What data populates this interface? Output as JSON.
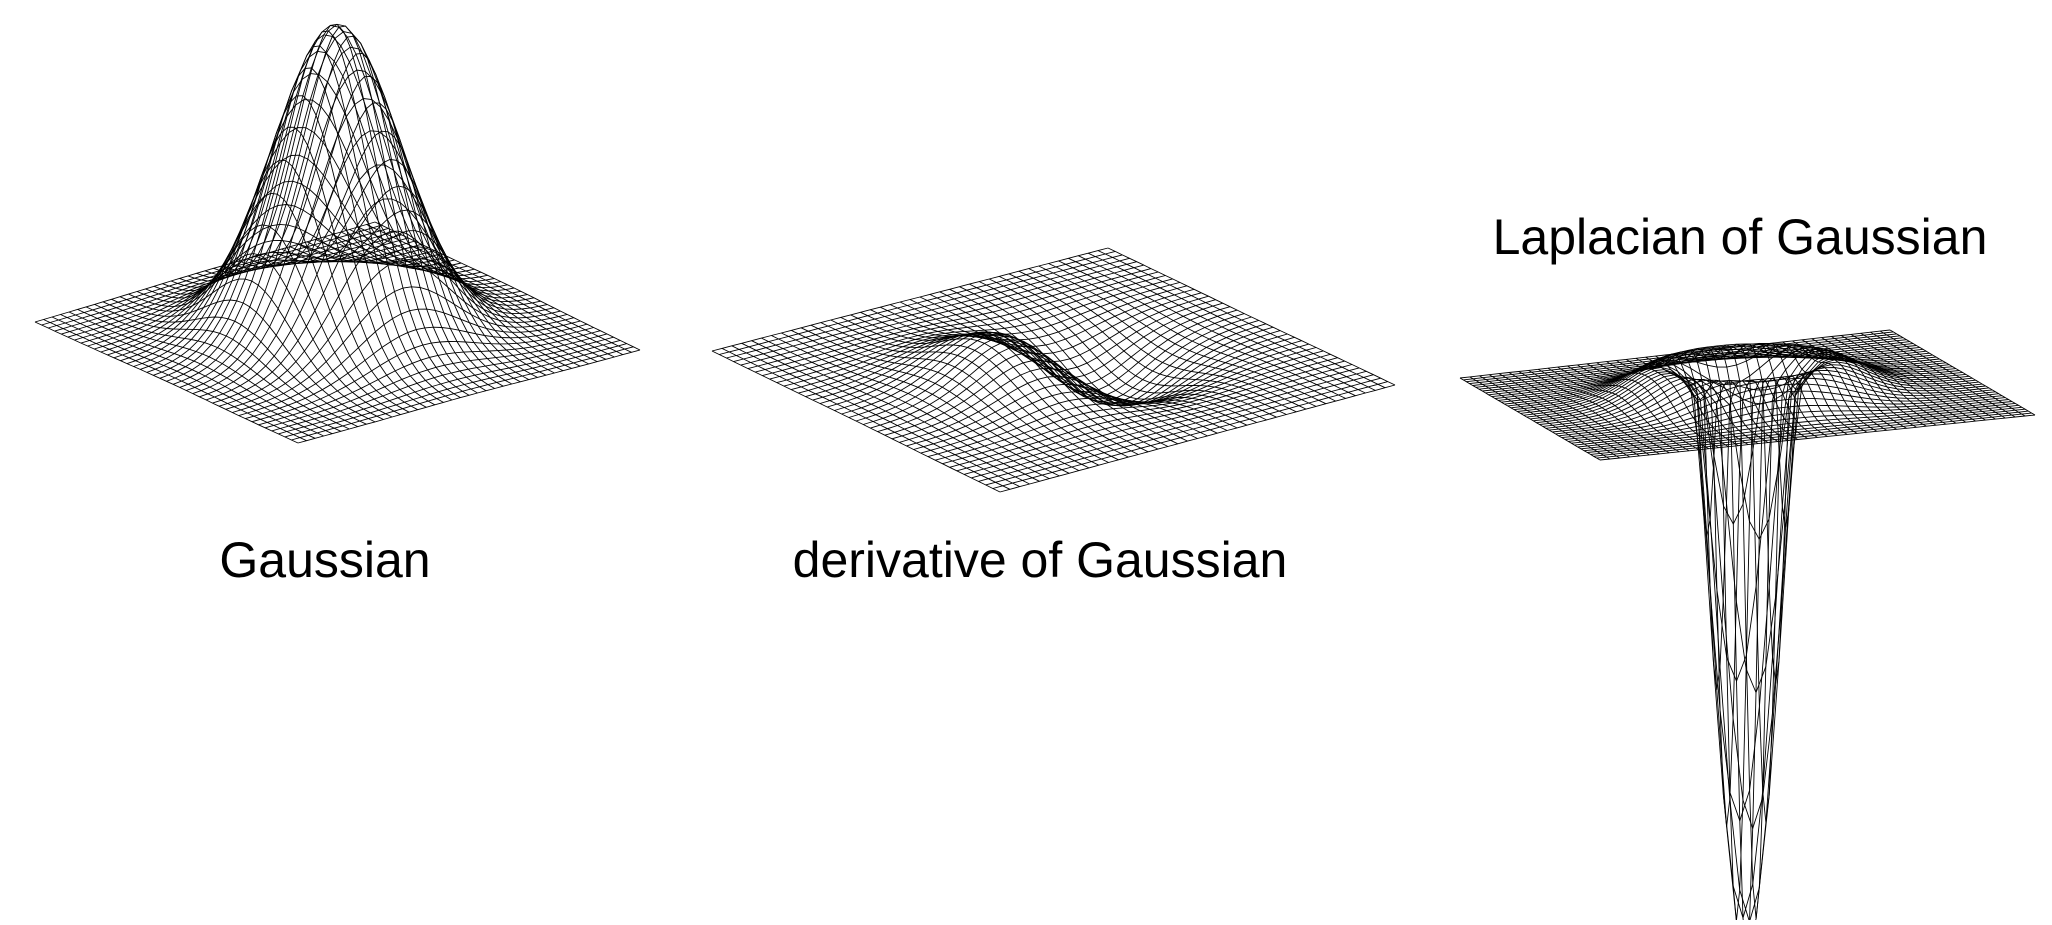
{
  "figure": {
    "panels": [
      {
        "id": "gaussian",
        "caption": "Gaussian",
        "surface": "gaussian",
        "mesh_color": "#000000"
      },
      {
        "id": "dog",
        "caption": "derivative of Gaussian",
        "surface": "derivative-of-gaussian",
        "mesh_color": "#000000"
      },
      {
        "id": "log",
        "caption": "Laplacian of Gaussian",
        "surface": "negative-laplacian-of-gaussian",
        "mesh_color": "#000000"
      }
    ],
    "background": "#ffffff"
  }
}
